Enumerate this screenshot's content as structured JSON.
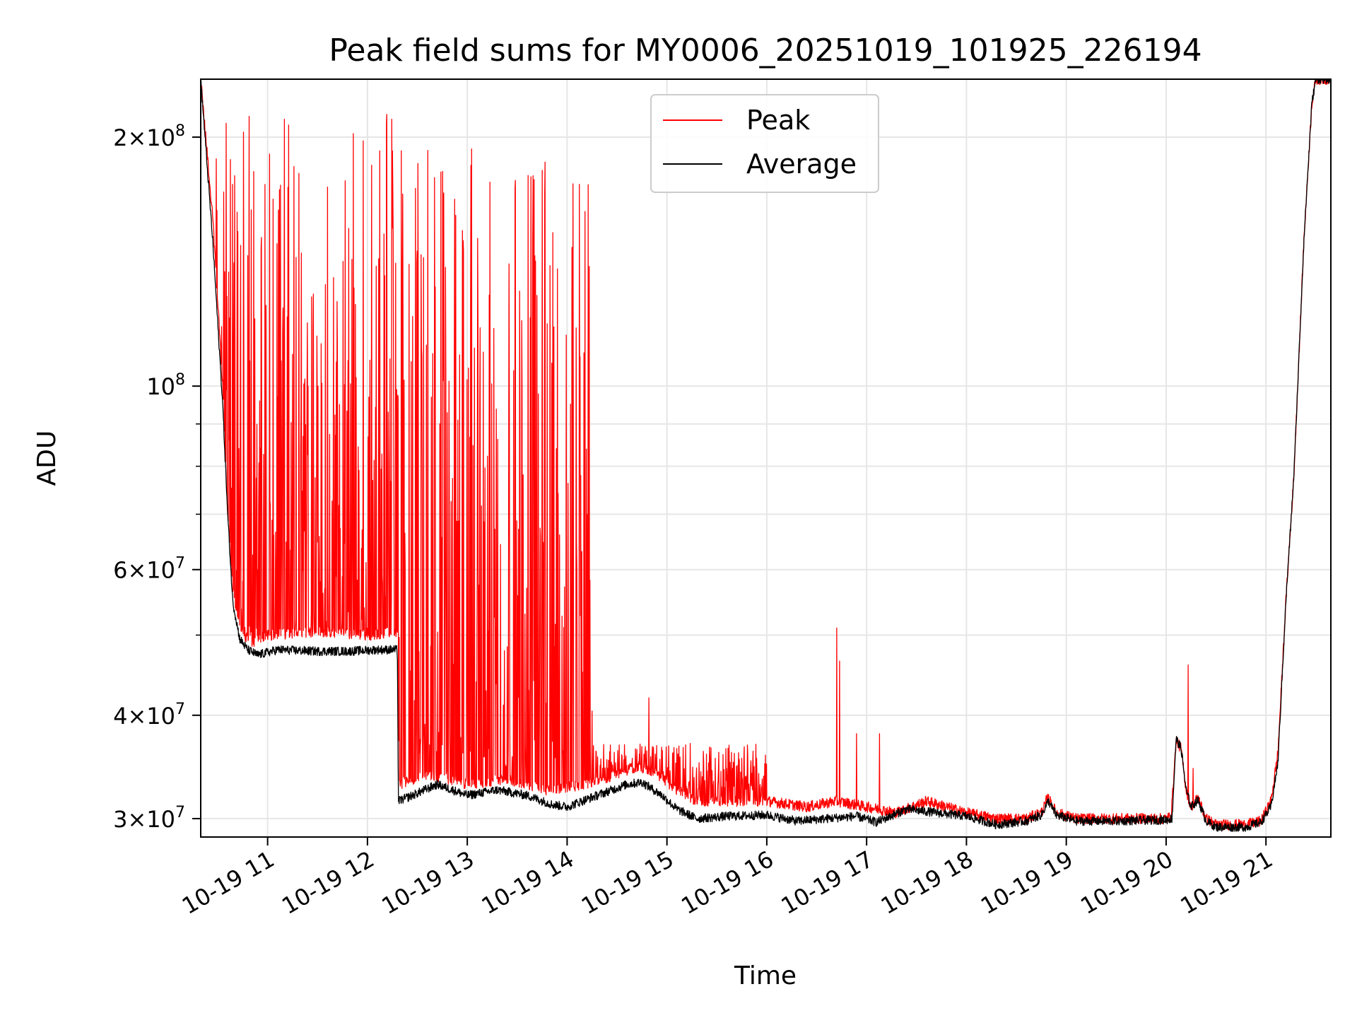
{
  "chart_data": {
    "type": "line",
    "title": "Peak field sums for MY0006_20251019_101925_226194",
    "xlabel": "Time",
    "ylabel": "ADU",
    "yscale": "log",
    "grid": true,
    "legend_position": "top-center",
    "xlim": [
      10.33,
      21.65
    ],
    "ylim": [
      28500000,
      235000000
    ],
    "x_ticks": [
      {
        "value": 11,
        "label": "10-19 11"
      },
      {
        "value": 12,
        "label": "10-19 12"
      },
      {
        "value": 13,
        "label": "10-19 13"
      },
      {
        "value": 14,
        "label": "10-19 14"
      },
      {
        "value": 15,
        "label": "10-19 15"
      },
      {
        "value": 16,
        "label": "10-19 16"
      },
      {
        "value": 17,
        "label": "10-19 17"
      },
      {
        "value": 18,
        "label": "10-19 18"
      },
      {
        "value": 19,
        "label": "10-19 19"
      },
      {
        "value": 20,
        "label": "10-19 20"
      },
      {
        "value": 21,
        "label": "10-19 21"
      }
    ],
    "y_ticks_major": [
      {
        "value": 30000000,
        "base": "3",
        "exp": "7"
      },
      {
        "value": 40000000,
        "base": "4",
        "exp": "7"
      },
      {
        "value": 60000000,
        "base": "6",
        "exp": "7"
      },
      {
        "value": 100000000,
        "base": "",
        "exp": "8"
      },
      {
        "value": 200000000,
        "base": "2",
        "exp": "8"
      }
    ],
    "y_ticks_minor": [
      50000000,
      70000000,
      80000000,
      90000000
    ],
    "series": [
      {
        "name": "Peak",
        "color": "#ff0000",
        "baseline": [
          [
            10.33,
            235000000
          ],
          [
            10.45,
            160000000
          ],
          [
            10.55,
            100000000
          ],
          [
            10.6,
            70000000
          ],
          [
            10.65,
            57000000
          ],
          [
            10.7,
            52000000
          ],
          [
            10.75,
            50000000
          ],
          [
            10.85,
            49000000
          ],
          [
            11.0,
            50000000
          ],
          [
            11.5,
            50500000
          ],
          [
            12.0,
            50000000
          ],
          [
            12.3,
            50500000
          ],
          [
            12.32,
            33000000
          ],
          [
            12.6,
            34000000
          ],
          [
            13.0,
            33000000
          ],
          [
            13.4,
            33500000
          ],
          [
            13.8,
            32500000
          ],
          [
            14.2,
            33000000
          ],
          [
            14.5,
            34000000
          ],
          [
            14.7,
            34700000
          ],
          [
            14.9,
            34000000
          ],
          [
            15.1,
            32500000
          ],
          [
            15.3,
            31500000
          ],
          [
            15.6,
            31500000
          ],
          [
            16.0,
            31500000
          ],
          [
            16.4,
            31000000
          ],
          [
            16.7,
            31500000
          ],
          [
            17.0,
            31000000
          ],
          [
            17.3,
            30500000
          ],
          [
            17.6,
            31500000
          ],
          [
            18.0,
            30500000
          ],
          [
            18.3,
            30000000
          ],
          [
            18.6,
            30000000
          ],
          [
            18.75,
            30500000
          ],
          [
            18.82,
            31800000
          ],
          [
            18.9,
            30500000
          ],
          [
            19.1,
            30000000
          ],
          [
            19.5,
            30000000
          ],
          [
            20.0,
            30000000
          ],
          [
            20.05,
            30200000
          ],
          [
            20.1,
            37200000
          ],
          [
            20.15,
            36500000
          ],
          [
            20.2,
            32500000
          ],
          [
            20.25,
            31000000
          ],
          [
            20.32,
            31800000
          ],
          [
            20.4,
            30000000
          ],
          [
            20.5,
            29500000
          ],
          [
            20.8,
            29500000
          ],
          [
            20.95,
            29800000
          ],
          [
            21.05,
            31500000
          ],
          [
            21.12,
            36000000
          ],
          [
            21.2,
            55000000
          ],
          [
            21.28,
            78000000
          ],
          [
            21.38,
            150000000
          ],
          [
            21.46,
            220000000
          ],
          [
            21.5,
            235000000
          ],
          [
            21.65,
            235000000
          ]
        ],
        "spike_regions": [
          {
            "start": 10.35,
            "end": 12.3,
            "low": 50000000,
            "high": 215000000
          },
          {
            "start": 12.3,
            "end": 14.25,
            "low": 33500000,
            "high": 195000000
          },
          {
            "start": 14.25,
            "end": 16.0,
            "low": 32500000,
            "high": 37000000
          }
        ],
        "notable_spikes": [
          [
            14.82,
            42000000
          ],
          [
            15.75,
            35500000
          ],
          [
            16.7,
            51000000
          ],
          [
            16.73,
            46500000
          ],
          [
            16.9,
            38000000
          ],
          [
            17.13,
            38000000
          ],
          [
            18.8,
            32000000
          ],
          [
            20.22,
            46000000
          ],
          [
            20.27,
            34500000
          ]
        ]
      },
      {
        "name": "Average",
        "color": "#000000",
        "points": [
          [
            10.33,
            235000000
          ],
          [
            10.45,
            150000000
          ],
          [
            10.55,
            95000000
          ],
          [
            10.6,
            70000000
          ],
          [
            10.65,
            55000000
          ],
          [
            10.72,
            49500000
          ],
          [
            10.8,
            48000000
          ],
          [
            10.9,
            47300000
          ],
          [
            11.1,
            48000000
          ],
          [
            11.5,
            47800000
          ],
          [
            11.8,
            47800000
          ],
          [
            12.1,
            48000000
          ],
          [
            12.3,
            48000000
          ],
          [
            12.31,
            31500000
          ],
          [
            12.45,
            32000000
          ],
          [
            12.7,
            33000000
          ],
          [
            13.0,
            32000000
          ],
          [
            13.3,
            32500000
          ],
          [
            13.6,
            32000000
          ],
          [
            13.85,
            31200000
          ],
          [
            14.0,
            31000000
          ],
          [
            14.3,
            32000000
          ],
          [
            14.6,
            33000000
          ],
          [
            14.75,
            33200000
          ],
          [
            14.95,
            32000000
          ],
          [
            15.1,
            30800000
          ],
          [
            15.3,
            30000000
          ],
          [
            15.6,
            30200000
          ],
          [
            16.0,
            30300000
          ],
          [
            16.3,
            29800000
          ],
          [
            16.6,
            30000000
          ],
          [
            16.9,
            30200000
          ],
          [
            17.1,
            29700000
          ],
          [
            17.4,
            30800000
          ],
          [
            17.7,
            30500000
          ],
          [
            18.0,
            30200000
          ],
          [
            18.3,
            29500000
          ],
          [
            18.6,
            29800000
          ],
          [
            18.75,
            30300000
          ],
          [
            18.82,
            31500000
          ],
          [
            18.9,
            30300000
          ],
          [
            19.1,
            29800000
          ],
          [
            19.5,
            29800000
          ],
          [
            20.0,
            29900000
          ],
          [
            20.06,
            30000000
          ],
          [
            20.1,
            37500000
          ],
          [
            20.15,
            36500000
          ],
          [
            20.2,
            32500000
          ],
          [
            20.25,
            31000000
          ],
          [
            20.32,
            31600000
          ],
          [
            20.4,
            29800000
          ],
          [
            20.5,
            29300000
          ],
          [
            20.8,
            29300000
          ],
          [
            20.95,
            29700000
          ],
          [
            21.05,
            31000000
          ],
          [
            21.12,
            35000000
          ],
          [
            21.2,
            55000000
          ],
          [
            21.28,
            78000000
          ],
          [
            21.38,
            150000000
          ],
          [
            21.46,
            220000000
          ],
          [
            21.5,
            235000000
          ],
          [
            21.65,
            235000000
          ]
        ]
      }
    ]
  }
}
